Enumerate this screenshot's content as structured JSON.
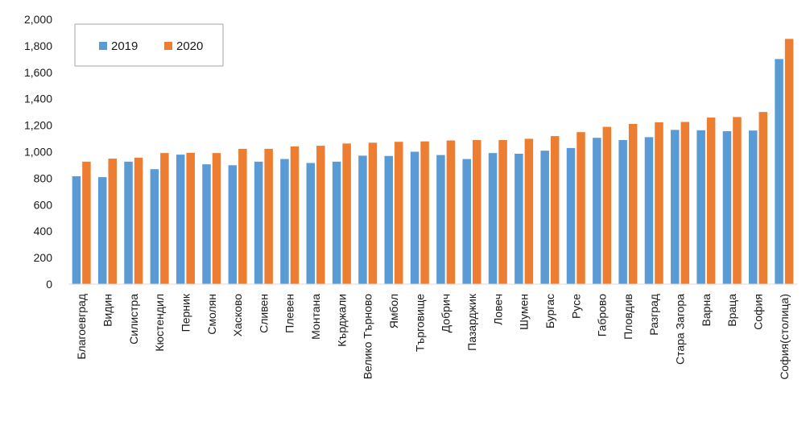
{
  "chart_data": {
    "type": "bar",
    "title": "",
    "xlabel": "",
    "ylabel": "",
    "ylim": [
      0,
      2000
    ],
    "ytick_step": 200,
    "yticks": [
      "0",
      "200",
      "400",
      "600",
      "800",
      "1,000",
      "1,200",
      "1,400",
      "1,600",
      "1,800",
      "2,000"
    ],
    "grid": false,
    "legend_position": "top-left",
    "categories": [
      "Благоевград",
      "Видин",
      "Силистра",
      "Кюстендил",
      "Перник",
      "Смолян",
      "Хасково",
      "Сливен",
      "Плевен",
      "Монтана",
      "Кърджали",
      "Велико Търново",
      "Ямбол",
      "Търговище",
      "Добрич",
      "Пазарджик",
      "Ловеч",
      "Шумен",
      "Бургас",
      "Русе",
      "Габрово",
      "Пловдив",
      "Разград",
      "Стара Загора",
      "Варна",
      "Враца",
      "София",
      "София(столица)"
    ],
    "series": [
      {
        "name": "2019",
        "color": "#5B9BD5",
        "values": [
          815,
          808,
          925,
          868,
          978,
          905,
          898,
          925,
          945,
          915,
          925,
          970,
          968,
          1000,
          975,
          945,
          990,
          985,
          1008,
          1028,
          1105,
          1088,
          1110,
          1165,
          1162,
          1155,
          1160,
          1700
        ]
      },
      {
        "name": "2020",
        "color": "#ED7D31",
        "values": [
          925,
          948,
          955,
          990,
          992,
          990,
          1022,
          1022,
          1040,
          1045,
          1062,
          1068,
          1075,
          1078,
          1085,
          1088,
          1088,
          1098,
          1118,
          1148,
          1188,
          1210,
          1222,
          1225,
          1258,
          1262,
          1300,
          1852
        ]
      }
    ]
  }
}
